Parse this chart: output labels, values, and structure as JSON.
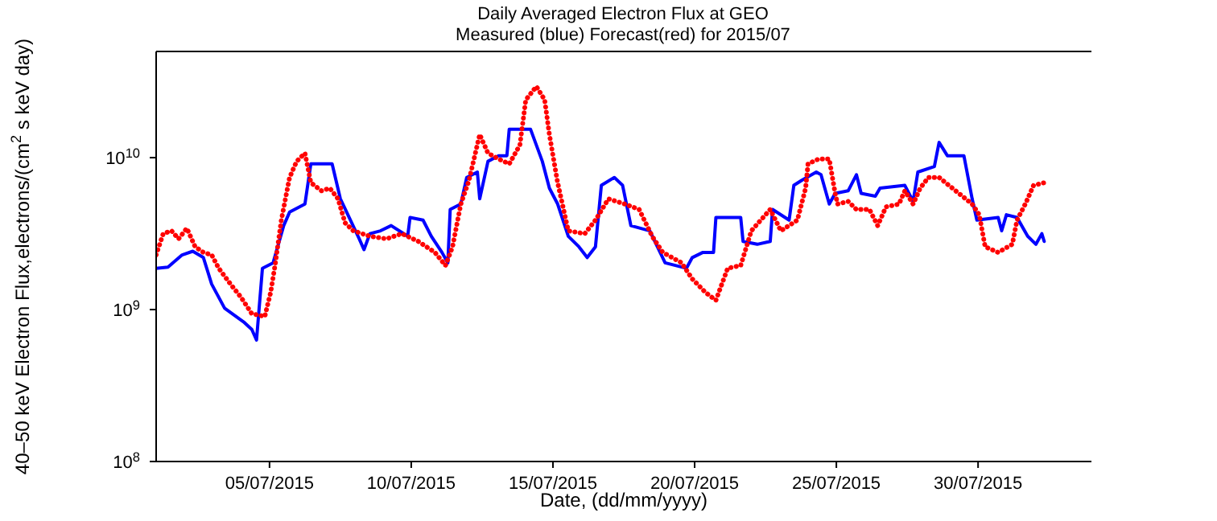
{
  "chart_data": {
    "type": "line",
    "title": "Daily Averaged Electron Flux at GEO",
    "subtitle": "Measured (blue) Forecast(red) for 2015/07",
    "xlabel": "Date, (dd/mm/yyyy)",
    "ylabel": "40–50 keV Electron Flux,electrons/(cm$^{2}$ s keV day)",
    "log": "y",
    "xlim": [
      "2015-07-01",
      "2015-08-03"
    ],
    "xticks": [
      {
        "value": "2015-07-05",
        "label": "05/07/2015"
      },
      {
        "value": "2015-07-10",
        "label": "10/07/2015"
      },
      {
        "value": "2015-07-15",
        "label": "15/07/2015"
      },
      {
        "value": "2015-07-20",
        "label": "20/07/2015"
      },
      {
        "value": "2015-07-25",
        "label": "25/07/2015"
      },
      {
        "value": "2015-07-30",
        "label": "30/07/2015"
      }
    ],
    "ylim": [
      100000000,
      50000000000
    ],
    "yticks": [
      {
        "value": 100000000,
        "label": "10$^{8}$"
      },
      {
        "value": 1000000000,
        "label": "10$^{9}$"
      },
      {
        "value": 10000000000,
        "label": "10$^{10}$"
      }
    ],
    "series": [
      {
        "color": "#0000ff",
        "line_style": "solid",
        "x": [
          "2015-07-01T00:00",
          "2015-07-01T10:00",
          "2015-07-01T22:00",
          "2015-07-02T07:00",
          "2015-07-02T16:00",
          "2015-07-02T23:00",
          "2015-07-03T10:00",
          "2015-07-04T02:00",
          "2015-07-04T09:00",
          "2015-07-04T13:00",
          "2015-07-04T18:00",
          "2015-07-05T03:00",
          "2015-07-05T12:00",
          "2015-07-05T17:00",
          "2015-07-06T06:00",
          "2015-07-06T11:00",
          "2015-07-07T05:00",
          "2015-07-07T12:00",
          "2015-07-08T04:00",
          "2015-07-08T08:00",
          "2015-07-08T13:00",
          "2015-07-08T22:00",
          "2015-07-09T07:00",
          "2015-07-09T21:00",
          "2015-07-09T23:00",
          "2015-07-10T10:00",
          "2015-07-10T17:00",
          "2015-07-11T02:00",
          "2015-07-11T07:00",
          "2015-07-11T09:00",
          "2015-07-11T18:00",
          "2015-07-11T23:00",
          "2015-07-12T08:00",
          "2015-07-12T10:00",
          "2015-07-12T17:00",
          "2015-07-13T02:00",
          "2015-07-13T09:00",
          "2015-07-13T11:00",
          "2015-07-14T05:00",
          "2015-07-14T15:00",
          "2015-07-14T21:00",
          "2015-07-15T04:00",
          "2015-07-15T13:00",
          "2015-07-15T22:00",
          "2015-07-16T05:00",
          "2015-07-16T12:00",
          "2015-07-16T17:00",
          "2015-07-17T04:00",
          "2015-07-17T11:00",
          "2015-07-17T18:00",
          "2015-07-18T10:00",
          "2015-07-18T23:00",
          "2015-07-19T17:00",
          "2015-07-19T22:00",
          "2015-07-20T07:00",
          "2015-07-20T16:00",
          "2015-07-20T18:00",
          "2015-07-21T15:00",
          "2015-07-21T17:00",
          "2015-07-22T05:00",
          "2015-07-22T16:00",
          "2015-07-22T18:00",
          "2015-07-23T08:00",
          "2015-07-23T12:00",
          "2015-07-23T19:00",
          "2015-07-24T07:00",
          "2015-07-24T11:00",
          "2015-07-24T18:00",
          "2015-07-24T23:00",
          "2015-07-25T10:00",
          "2015-07-25T17:00",
          "2015-07-25T21:00",
          "2015-07-26T09:00",
          "2015-07-26T13:00",
          "2015-07-27T10:00",
          "2015-07-27T17:00",
          "2015-07-27T21:00",
          "2015-07-28T11:00",
          "2015-07-28T15:00",
          "2015-07-28T22:00",
          "2015-07-29T12:00",
          "2015-07-29T19:00",
          "2015-07-29T23:00",
          "2015-07-30T17:00",
          "2015-07-30T20:00",
          "2015-07-31T00:00",
          "2015-07-31T09:00",
          "2015-07-31T18:00",
          "2015-08-01T01:00",
          "2015-08-01T06:00",
          "2015-08-01T08:00"
        ],
        "values": [
          1870000000.0,
          1900000000.0,
          2290000000.0,
          2420000000.0,
          2200000000.0,
          1470000000.0,
          1020000000.0,
          830000000.0,
          740000000.0,
          630000000.0,
          1870000000.0,
          2030000000.0,
          3570000000.0,
          4380000000.0,
          4950000000.0,
          9100000000.0,
          9100000000.0,
          5360000000.0,
          2920000000.0,
          2480000000.0,
          3160000000.0,
          3300000000.0,
          3570000000.0,
          3040000000.0,
          4040000000.0,
          3880000000.0,
          3040000000.0,
          2380000000.0,
          2030000000.0,
          4560000000.0,
          4950000000.0,
          7410000000.0,
          8040000000.0,
          5360000000.0,
          9460000000.0,
          10300000000.0,
          10300000000.0,
          15400000000.0,
          15400000000.0,
          9460000000.0,
          6300000000.0,
          4950000000.0,
          3040000000.0,
          2590000000.0,
          2200000000.0,
          2590000000.0,
          6570000000.0,
          7410000000.0,
          6570000000.0,
          3570000000.0,
          3300000000.0,
          2030000000.0,
          1870000000.0,
          2200000000.0,
          2380000000.0,
          2380000000.0,
          4040000000.0,
          4040000000.0,
          2810000000.0,
          2690000000.0,
          2810000000.0,
          4560000000.0,
          3880000000.0,
          6570000000.0,
          7120000000.0,
          8040000000.0,
          7720000000.0,
          4950000000.0,
          5820000000.0,
          6050000000.0,
          7720000000.0,
          5820000000.0,
          5580000000.0,
          6300000000.0,
          6570000000.0,
          5150000000.0,
          8040000000.0,
          8730000000.0,
          12600000000.0,
          10300000000.0,
          10300000000.0,
          5360000000.0,
          3880000000.0,
          4040000000.0,
          3300000000.0,
          4210000000.0,
          4040000000.0,
          3040000000.0,
          2690000000.0,
          3160000000.0,
          2810000000.0
        ]
      },
      {
        "color": "#ff0000",
        "line_style": "dotted",
        "x": [
          "2015-07-01T00:00",
          "2015-07-01T06:00",
          "2015-07-01T13:00",
          "2015-07-01T19:00",
          "2015-07-02T02:00",
          "2015-07-02T09:00",
          "2015-07-02T16:00",
          "2015-07-02T23:00",
          "2015-07-03T05:00",
          "2015-07-03T15:00",
          "2015-07-04T00:00",
          "2015-07-04T09:00",
          "2015-07-04T20:00",
          "2015-07-05T01:00",
          "2015-07-05T05:00",
          "2015-07-05T10:00",
          "2015-07-05T17:00",
          "2015-07-05T23:00",
          "2015-07-06T06:00",
          "2015-07-06T11:00",
          "2015-07-06T20:00",
          "2015-07-07T03:00",
          "2015-07-07T10:00",
          "2015-07-07T16:00",
          "2015-07-07T23:00",
          "2015-07-08T13:00",
          "2015-07-09T03:00",
          "2015-07-09T16:00",
          "2015-07-10T06:00",
          "2015-07-10T20:00",
          "2015-07-11T05:00",
          "2015-07-11T11:00",
          "2015-07-11T18:00",
          "2015-07-12T01:00",
          "2015-07-12T10:00",
          "2015-07-12T17:00",
          "2015-07-13T02:00",
          "2015-07-13T11:00",
          "2015-07-13T20:00",
          "2015-07-14T01:00",
          "2015-07-14T10:00",
          "2015-07-14T17:00",
          "2015-07-14T21:00",
          "2015-07-15T04:00",
          "2015-07-15T13:00",
          "2015-07-16T03:00",
          "2015-07-16T12:00",
          "2015-07-16T23:00",
          "2015-07-17T13:00",
          "2015-07-18T01:00",
          "2015-07-18T12:00",
          "2015-07-18T21:00",
          "2015-07-19T13:00",
          "2015-07-19T22:00",
          "2015-07-20T09:00",
          "2015-07-20T18:00",
          "2015-07-20T23:00",
          "2015-07-21T04:00",
          "2015-07-21T15:00",
          "2015-07-22T00:00",
          "2015-07-22T16:00",
          "2015-07-23T01:00",
          "2015-07-23T15:00",
          "2015-07-23T22:00",
          "2015-07-24T00:00",
          "2015-07-24T09:00",
          "2015-07-24T18:00",
          "2015-07-24T23:00",
          "2015-07-25T01:00",
          "2015-07-25T10:00",
          "2015-07-25T17:00",
          "2015-07-26T04:00",
          "2015-07-26T11:00",
          "2015-07-26T18:00",
          "2015-07-27T05:00",
          "2015-07-27T10:00",
          "2015-07-27T17:00",
          "2015-07-27T23:00",
          "2015-07-28T06:00",
          "2015-07-28T15:00",
          "2015-07-29T05:00",
          "2015-07-29T19:00",
          "2015-07-30T01:00",
          "2015-07-30T06:00",
          "2015-07-30T17:00",
          "2015-07-31T05:00",
          "2015-07-31T09:00",
          "2015-07-31T16:00",
          "2015-07-31T23:00",
          "2015-08-01T08:00"
        ],
        "values": [
          2290000000.0,
          3160000000.0,
          3300000000.0,
          2920000000.0,
          3430000000.0,
          2590000000.0,
          2380000000.0,
          2290000000.0,
          1870000000.0,
          1470000000.0,
          1200000000.0,
          940000000.0,
          900000000.0,
          1300000000.0,
          2030000000.0,
          3880000000.0,
          7410000000.0,
          9460000000.0,
          10700000000.0,
          6840000000.0,
          6050000000.0,
          6300000000.0,
          5360000000.0,
          3720000000.0,
          3300000000.0,
          3040000000.0,
          2920000000.0,
          3160000000.0,
          2810000000.0,
          2380000000.0,
          1950000000.0,
          2590000000.0,
          4950000000.0,
          7120000000.0,
          14200000000.0,
          10700000000.0,
          9800000000.0,
          9100000000.0,
          12100000000.0,
          24000000000.0,
          29400000000.0,
          24000000000.0,
          14200000000.0,
          6840000000.0,
          3300000000.0,
          3160000000.0,
          3880000000.0,
          5360000000.0,
          4950000000.0,
          4560000000.0,
          3040000000.0,
          2380000000.0,
          2030000000.0,
          1590000000.0,
          1300000000.0,
          1150000000.0,
          1470000000.0,
          1870000000.0,
          1950000000.0,
          3300000000.0,
          4560000000.0,
          3300000000.0,
          3880000000.0,
          6300000000.0,
          9100000000.0,
          9800000000.0,
          9800000000.0,
          5820000000.0,
          4950000000.0,
          5150000000.0,
          4560000000.0,
          4560000000.0,
          3570000000.0,
          4740000000.0,
          4950000000.0,
          6050000000.0,
          4950000000.0,
          6300000000.0,
          7410000000.0,
          7410000000.0,
          6050000000.0,
          4950000000.0,
          4210000000.0,
          2590000000.0,
          2380000000.0,
          2690000000.0,
          3880000000.0,
          4950000000.0,
          6570000000.0,
          6840000000.0
        ]
      }
    ]
  }
}
